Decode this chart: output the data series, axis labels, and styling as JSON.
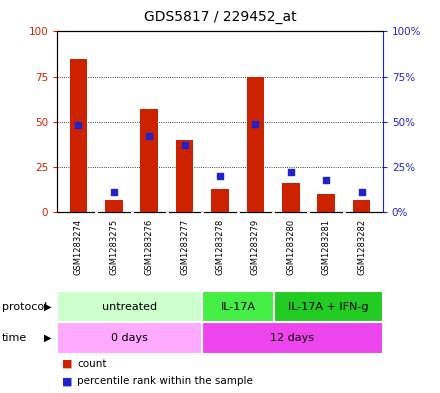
{
  "title": "GDS5817 / 229452_at",
  "samples": [
    "GSM1283274",
    "GSM1283275",
    "GSM1283276",
    "GSM1283277",
    "GSM1283278",
    "GSM1283279",
    "GSM1283280",
    "GSM1283281",
    "GSM1283282"
  ],
  "counts": [
    85,
    7,
    57,
    40,
    13,
    75,
    16,
    10,
    7
  ],
  "percentiles": [
    48,
    11,
    42,
    37,
    20,
    49,
    22,
    18,
    11
  ],
  "protocol_groups": [
    {
      "label": "untreated",
      "start": 0,
      "end": 4,
      "color": "#ccffcc"
    },
    {
      "label": "IL-17A",
      "start": 4,
      "end": 6,
      "color": "#44ee44"
    },
    {
      "label": "IL-17A + IFN-g",
      "start": 6,
      "end": 9,
      "color": "#22cc22"
    }
  ],
  "time_groups": [
    {
      "label": "0 days",
      "start": 0,
      "end": 4,
      "color": "#ffaaff"
    },
    {
      "label": "12 days",
      "start": 4,
      "end": 9,
      "color": "#ee44ee"
    }
  ],
  "bar_color": "#cc2200",
  "dot_color": "#2222cc",
  "ylim": [
    0,
    100
  ],
  "y_ticks": [
    0,
    25,
    50,
    75,
    100
  ],
  "background_color": "#ffffff",
  "sample_box_color": "#cccccc",
  "left_label_color": "#cc2200",
  "right_label_color": "#2222cc"
}
